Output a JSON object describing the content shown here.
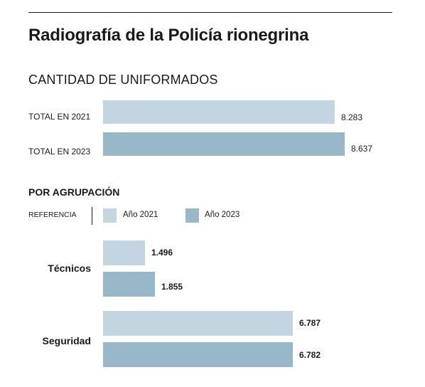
{
  "title": "Radiografía de la Policía rionegrina",
  "colors": {
    "y2021": "#c3d5e1",
    "y2023": "#98b7c8"
  },
  "chart_data": [
    {
      "type": "bar",
      "orientation": "horizontal",
      "title": "CANTIDAD DE UNIFORMADOS",
      "categories": [
        "TOTAL EN 2021",
        "TOTAL EN 2023"
      ],
      "values": [
        8283,
        8637
      ],
      "value_labels": [
        "8.283",
        "8.637"
      ]
    },
    {
      "type": "bar",
      "orientation": "horizontal",
      "title": "POR AGRUPACIÓN",
      "legend_title": "REFERENCIA",
      "categories": [
        "Técnicos",
        "Seguridad"
      ],
      "series": [
        {
          "name": "Año 2021",
          "values": [
            1496,
            6787
          ],
          "value_labels": [
            "1.496",
            "6.787"
          ]
        },
        {
          "name": "Año 2023",
          "values": [
            1855,
            6782
          ],
          "value_labels": [
            "1.855",
            "6.782"
          ]
        }
      ]
    }
  ]
}
